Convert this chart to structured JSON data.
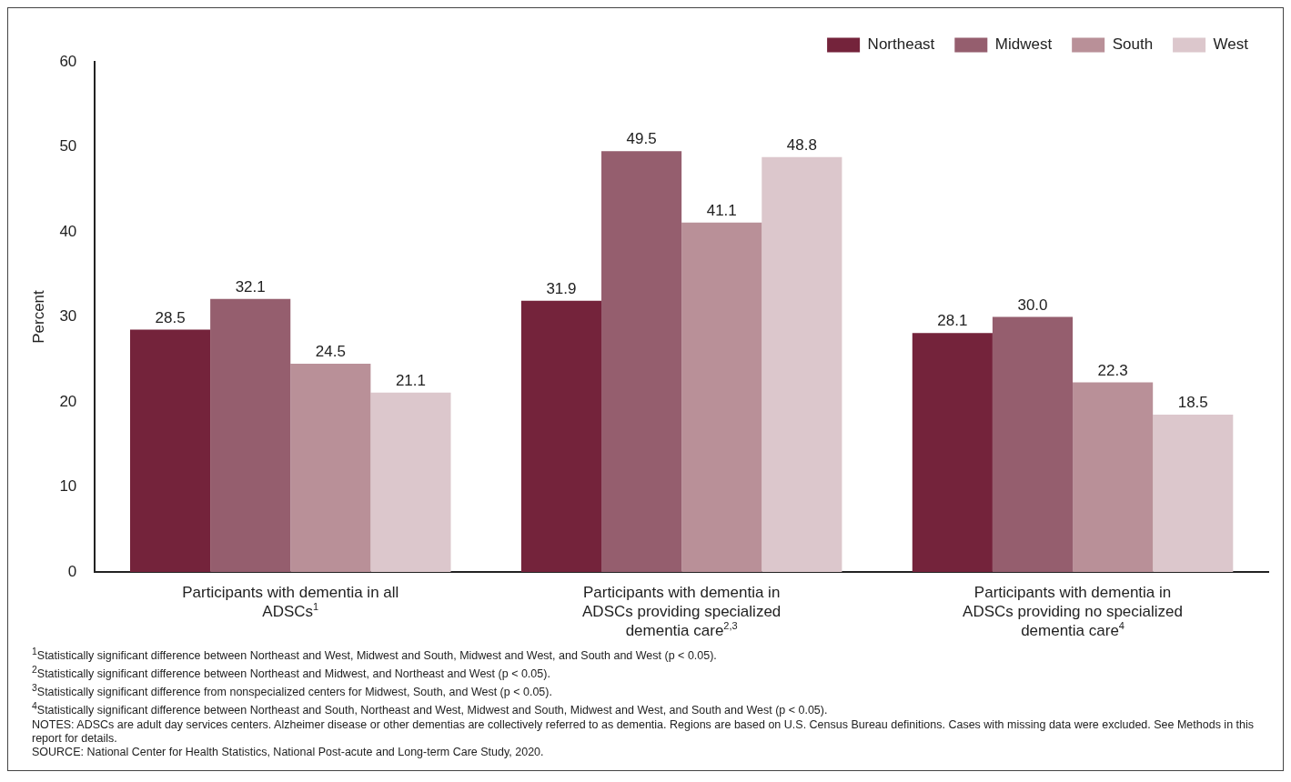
{
  "chart_data": {
    "type": "bar",
    "ylabel": "Percent",
    "categories": [
      "Participants with dementia in all ADSCs$^{1}$",
      "Participants with dementia in ADSCs providing specialized dementia care$^{2,3}$",
      "Participants with dementia in ADSCs providing no specialized dementia care$^{4}$"
    ],
    "series": [
      {
        "name": "Northeast",
        "color": "#74233b",
        "values": [
          28.5,
          31.9,
          28.1
        ]
      },
      {
        "name": "Midwest",
        "color": "#955e6e",
        "values": [
          32.1,
          49.5,
          30.0
        ]
      },
      {
        "name": "South",
        "color": "#b99098",
        "values": [
          24.5,
          41.1,
          22.3
        ]
      },
      {
        "name": "West",
        "color": "#dcc7cc",
        "values": [
          21.1,
          48.8,
          18.5
        ]
      }
    ],
    "value_labels": [
      [
        "28.5",
        "31.9",
        "28.1"
      ],
      [
        "32.1",
        "49.5",
        "30.0"
      ],
      [
        "24.5",
        "41.1",
        "22.3"
      ],
      [
        "21.1",
        "48.8",
        "18.5"
      ]
    ],
    "ylim": [
      0,
      60
    ],
    "yticks": [
      0,
      10,
      20,
      30,
      40,
      50,
      60
    ],
    "grid": false,
    "legend": "top right",
    "annotations": [
      "$^{1}$Statistically significant difference between Northeast and West, Midwest and South, Midwest and West, and South and West (p < 0.05).",
      "$^{2}$Statistically significant difference between Northeast and Midwest, and Northeast and West (p < 0.05).",
      "$^{3}$Statistically significant difference from nonspecialized centers for Midwest, South, and West (p < 0.05).",
      "$^{4}$Statistically significant difference between Northeast and South, Northeast and West, Midwest and South, Midwest and West, and South and West (p < 0.05).",
      "NOTES: ADSCs are adult day services centers. Alzheimer disease or other dementias are collectively referred to as dementia. Regions are based on U.S. Census Bureau definitions. Cases with missing data were excluded. See Methods in this report for details.",
      "SOURCE: National Center for Health Statistics, National Post-acute and Long-term Care Study, 2020."
    ]
  }
}
